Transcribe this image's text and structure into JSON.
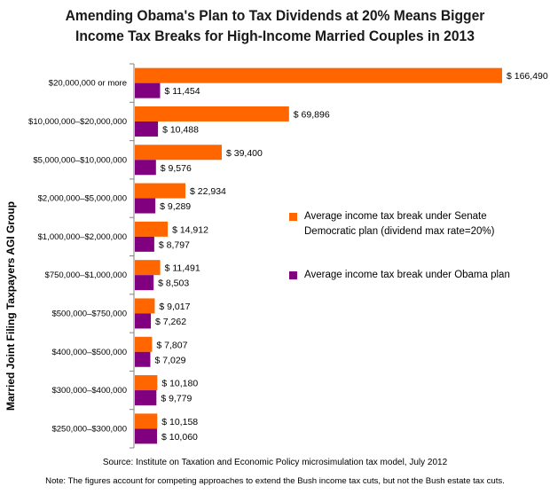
{
  "chart_data": {
    "type": "bar",
    "orientation": "horizontal",
    "title": [
      "Amending Obama's Plan to Tax Dividends at 20% Means Bigger",
      "Income Tax Breaks for High-Income Married Couples in 2013"
    ],
    "ylabel": "Married Joint Filing Taxpayers AGI Group",
    "xlim": [
      0,
      170000
    ],
    "categories": [
      "$20,000,000 or more",
      "$10,000,000–$20,000,000",
      "$5,000,000–$10,000,000",
      "$2,000,000–$5,000,000",
      "$1,000,000–$2,000,000",
      "$750,000–$1,000,000",
      "$500,000–$750,000",
      "$400,000–$500,000",
      "$300,000–$400,000",
      "$250,000–$300,000"
    ],
    "series": [
      {
        "name": "Average income tax break under Senate Democratic plan (dividend max rate=20%)",
        "color": "#ff6600",
        "values": [
          166490,
          69896,
          39400,
          22934,
          14912,
          11491,
          9017,
          7807,
          10180,
          10158
        ],
        "labels": [
          "$ 166,490",
          "$ 69,896",
          "$ 39,400",
          "$ 22,934",
          "$ 14,912",
          "$ 11,491",
          "$ 9,017",
          "$ 7,807",
          "$ 10,180",
          "$ 10,158"
        ]
      },
      {
        "name": "Average income tax break under Obama plan",
        "color": "#800080",
        "values": [
          11454,
          10488,
          9576,
          9289,
          8797,
          8503,
          7262,
          7029,
          9779,
          10060
        ],
        "labels": [
          "$ 11,454",
          "$ 10,488",
          "$ 9,576",
          "$ 9,289",
          "$ 8,797",
          "$ 8,503",
          "$ 7,262",
          "$ 7,029",
          "$ 9,779",
          "$ 10,060"
        ]
      }
    ],
    "legend_position": "right"
  },
  "footer": {
    "source": "Source: Institute on Taxation and Economic Policy microsimulation tax model, July 2012",
    "note": "Note: The figures account for competing approaches to extend the Bush income tax cuts, but not the Bush estate tax cuts."
  }
}
